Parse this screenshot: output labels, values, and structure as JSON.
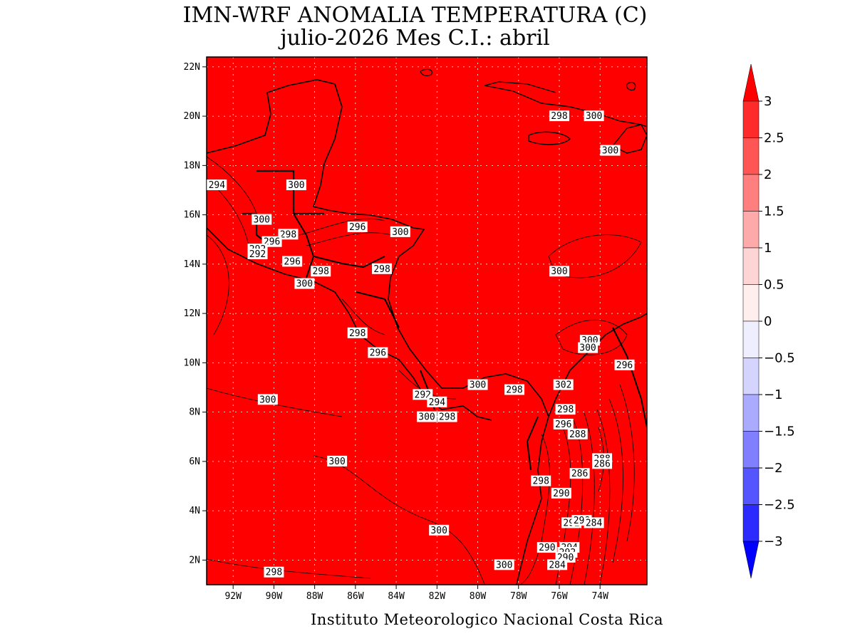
{
  "header": {
    "title": "IMN-WRF  ANOMALIA TEMPERATURA (C)",
    "subtitle": "julio-2026 Mes C.I.: abril"
  },
  "footer": {
    "credit": "Instituto Meteorologico Nacional Costa Rica"
  },
  "map": {
    "extent": {
      "lon": [
        -93.3,
        -71.7
      ],
      "lat": [
        1.0,
        22.4
      ]
    },
    "fill_color": "#ff0000",
    "lat_ticks": [
      {
        "value": 2,
        "label": "2N"
      },
      {
        "value": 4,
        "label": "4N"
      },
      {
        "value": 6,
        "label": "6N"
      },
      {
        "value": 8,
        "label": "8N"
      },
      {
        "value": 10,
        "label": "10N"
      },
      {
        "value": 12,
        "label": "12N"
      },
      {
        "value": 14,
        "label": "14N"
      },
      {
        "value": 16,
        "label": "16N"
      },
      {
        "value": 18,
        "label": "18N"
      },
      {
        "value": 20,
        "label": "20N"
      },
      {
        "value": 22,
        "label": "22N"
      }
    ],
    "lon_ticks": [
      {
        "value": -92,
        "label": "92W"
      },
      {
        "value": -90,
        "label": "90W"
      },
      {
        "value": -88,
        "label": "88W"
      },
      {
        "value": -86,
        "label": "86W"
      },
      {
        "value": -84,
        "label": "84W"
      },
      {
        "value": -82,
        "label": "82W"
      },
      {
        "value": -80,
        "label": "80W"
      },
      {
        "value": -78,
        "label": "78W"
      },
      {
        "value": -76,
        "label": "76W"
      },
      {
        "value": -74,
        "label": "74W"
      }
    ],
    "contour_labels": [
      {
        "lon": -76.0,
        "lat": 20.0,
        "text": "298"
      },
      {
        "lon": -74.3,
        "lat": 20.0,
        "text": "300"
      },
      {
        "lon": -73.5,
        "lat": 18.6,
        "text": "300"
      },
      {
        "lon": -92.8,
        "lat": 17.2,
        "text": "294"
      },
      {
        "lon": -88.9,
        "lat": 17.2,
        "text": "300"
      },
      {
        "lon": -90.6,
        "lat": 15.8,
        "text": "300"
      },
      {
        "lon": -89.3,
        "lat": 15.2,
        "text": "298"
      },
      {
        "lon": -90.1,
        "lat": 14.9,
        "text": "296"
      },
      {
        "lon": -90.8,
        "lat": 14.6,
        "text": "292"
      },
      {
        "lon": -90.8,
        "lat": 14.4,
        "text": "292"
      },
      {
        "lon": -89.1,
        "lat": 14.1,
        "text": "296"
      },
      {
        "lon": -87.7,
        "lat": 13.7,
        "text": "298"
      },
      {
        "lon": -88.5,
        "lat": 13.2,
        "text": "300"
      },
      {
        "lon": -85.9,
        "lat": 15.5,
        "text": "296"
      },
      {
        "lon": -83.8,
        "lat": 15.3,
        "text": "300"
      },
      {
        "lon": -84.7,
        "lat": 13.8,
        "text": "298"
      },
      {
        "lon": -76.0,
        "lat": 13.7,
        "text": "300"
      },
      {
        "lon": -85.9,
        "lat": 11.2,
        "text": "298"
      },
      {
        "lon": -84.9,
        "lat": 10.4,
        "text": "296"
      },
      {
        "lon": -74.5,
        "lat": 10.9,
        "text": "300"
      },
      {
        "lon": -74.6,
        "lat": 10.6,
        "text": "300"
      },
      {
        "lon": -72.8,
        "lat": 9.9,
        "text": "296"
      },
      {
        "lon": -90.3,
        "lat": 8.5,
        "text": "300"
      },
      {
        "lon": -82.7,
        "lat": 8.7,
        "text": "292"
      },
      {
        "lon": -82.0,
        "lat": 8.4,
        "text": "294"
      },
      {
        "lon": -80.0,
        "lat": 9.1,
        "text": "300"
      },
      {
        "lon": -78.2,
        "lat": 8.9,
        "text": "298"
      },
      {
        "lon": -75.8,
        "lat": 9.1,
        "text": "302"
      },
      {
        "lon": -82.5,
        "lat": 7.8,
        "text": "300"
      },
      {
        "lon": -81.5,
        "lat": 7.8,
        "text": "298"
      },
      {
        "lon": -75.7,
        "lat": 8.1,
        "text": "298"
      },
      {
        "lon": -75.8,
        "lat": 7.5,
        "text": "296"
      },
      {
        "lon": -75.1,
        "lat": 7.1,
        "text": "288"
      },
      {
        "lon": -86.9,
        "lat": 6.0,
        "text": "300"
      },
      {
        "lon": -73.9,
        "lat": 6.1,
        "text": "288"
      },
      {
        "lon": -73.9,
        "lat": 5.9,
        "text": "286"
      },
      {
        "lon": -75.0,
        "lat": 5.5,
        "text": "286"
      },
      {
        "lon": -76.9,
        "lat": 5.2,
        "text": "298"
      },
      {
        "lon": -75.9,
        "lat": 4.7,
        "text": "290"
      },
      {
        "lon": -75.4,
        "lat": 3.5,
        "text": "292"
      },
      {
        "lon": -74.9,
        "lat": 3.6,
        "text": "298"
      },
      {
        "lon": -74.3,
        "lat": 3.5,
        "text": "284"
      },
      {
        "lon": -81.9,
        "lat": 3.2,
        "text": "300"
      },
      {
        "lon": -76.6,
        "lat": 2.5,
        "text": "290"
      },
      {
        "lon": -75.5,
        "lat": 2.5,
        "text": "294"
      },
      {
        "lon": -75.6,
        "lat": 2.3,
        "text": "292"
      },
      {
        "lon": -75.7,
        "lat": 2.1,
        "text": "290"
      },
      {
        "lon": -76.1,
        "lat": 1.8,
        "text": "284"
      },
      {
        "lon": -78.7,
        "lat": 1.8,
        "text": "300"
      },
      {
        "lon": -90.0,
        "lat": 1.5,
        "text": "298"
      }
    ]
  },
  "colorbar": {
    "levels": [
      {
        "label": "3"
      },
      {
        "label": "2.5"
      },
      {
        "label": "2"
      },
      {
        "label": "1.5"
      },
      {
        "label": "1"
      },
      {
        "label": "0.5"
      },
      {
        "label": "0"
      },
      {
        "label": "−0.5"
      },
      {
        "label": "−1"
      },
      {
        "label": "−1.5"
      },
      {
        "label": "−2"
      },
      {
        "label": "−2.5"
      },
      {
        "label": "−3"
      }
    ],
    "colors": [
      "#ff0000",
      "#ff2b2b",
      "#ff5555",
      "#ff7f7f",
      "#ffaaaa",
      "#ffd4d4",
      "#ffeeee",
      "#eeeeff",
      "#d4d4ff",
      "#aaaaff",
      "#7f7fff",
      "#5555ff",
      "#2b2bff",
      "#0000ff"
    ]
  }
}
